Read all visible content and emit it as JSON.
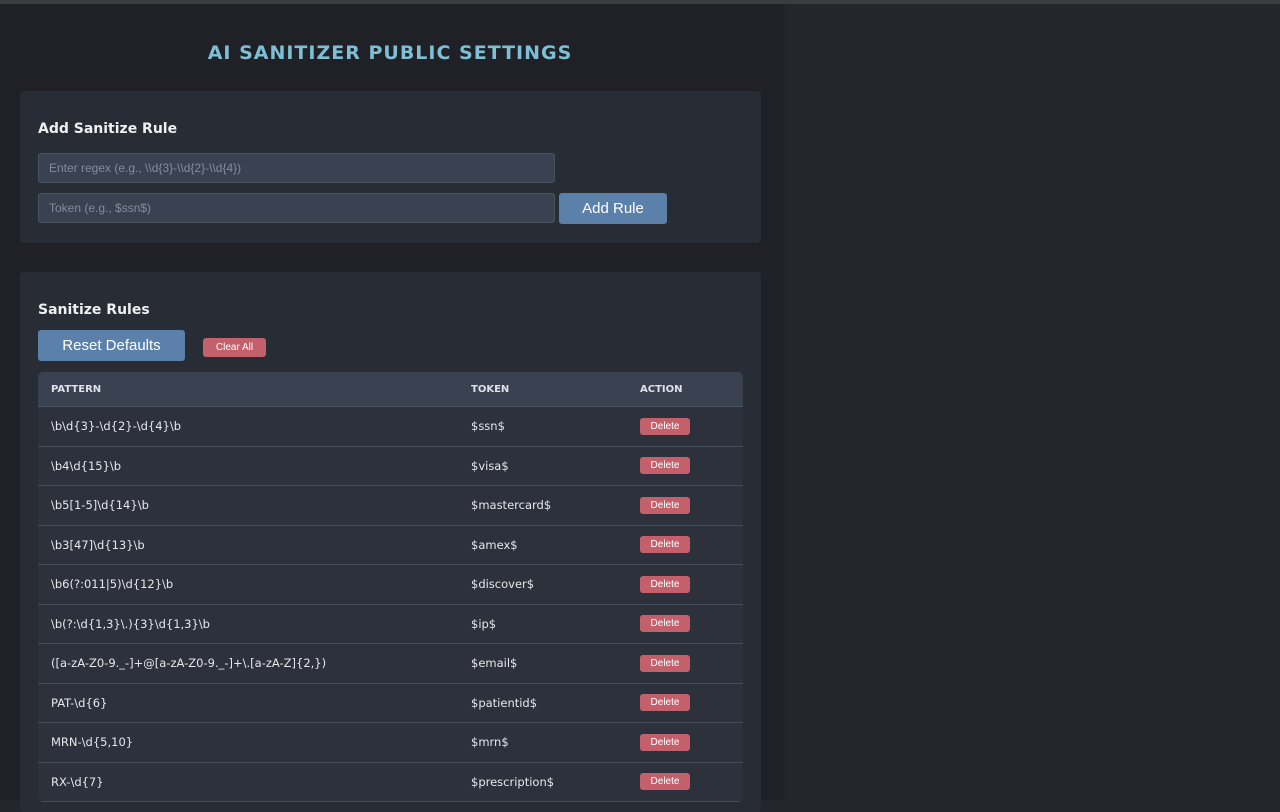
{
  "title": "AI SANITIZER PUBLIC SETTINGS",
  "add_card": {
    "heading": "Add Sanitize Rule",
    "regex_placeholder": "Enter regex (e.g., \\\\d{3}-\\\\d{2}-\\\\d{4})",
    "token_placeholder": "Token (e.g., $ssn$)",
    "add_button": "Add Rule"
  },
  "rules_card": {
    "heading": "Sanitize Rules",
    "reset_button": "Reset Defaults",
    "clear_button": "Clear All",
    "columns": [
      "PATTERN",
      "TOKEN",
      "ACTION"
    ],
    "delete_label": "Delete",
    "rows": [
      {
        "pattern": "\\b\\d{3}-\\d{2}-\\d{4}\\b",
        "token": "$ssn$"
      },
      {
        "pattern": "\\b4\\d{15}\\b",
        "token": "$visa$"
      },
      {
        "pattern": "\\b5[1-5]\\d{14}\\b",
        "token": "$mastercard$"
      },
      {
        "pattern": "\\b3[47]\\d{13}\\b",
        "token": "$amex$"
      },
      {
        "pattern": "\\b6(?:011|5)\\d{12}\\b",
        "token": "$discover$"
      },
      {
        "pattern": "\\b(?:\\d{1,3}\\.){3}\\d{1,3}\\b",
        "token": "$ip$"
      },
      {
        "pattern": "([a-zA-Z0-9._-]+@[a-zA-Z0-9._-]+\\.[a-zA-Z]{2,})",
        "token": "$email$"
      },
      {
        "pattern": "PAT-\\d{6}",
        "token": "$patientid$"
      },
      {
        "pattern": "MRN-\\d{5,10}",
        "token": "$mrn$"
      },
      {
        "pattern": "RX-\\d{7}",
        "token": "$prescription$"
      }
    ]
  }
}
